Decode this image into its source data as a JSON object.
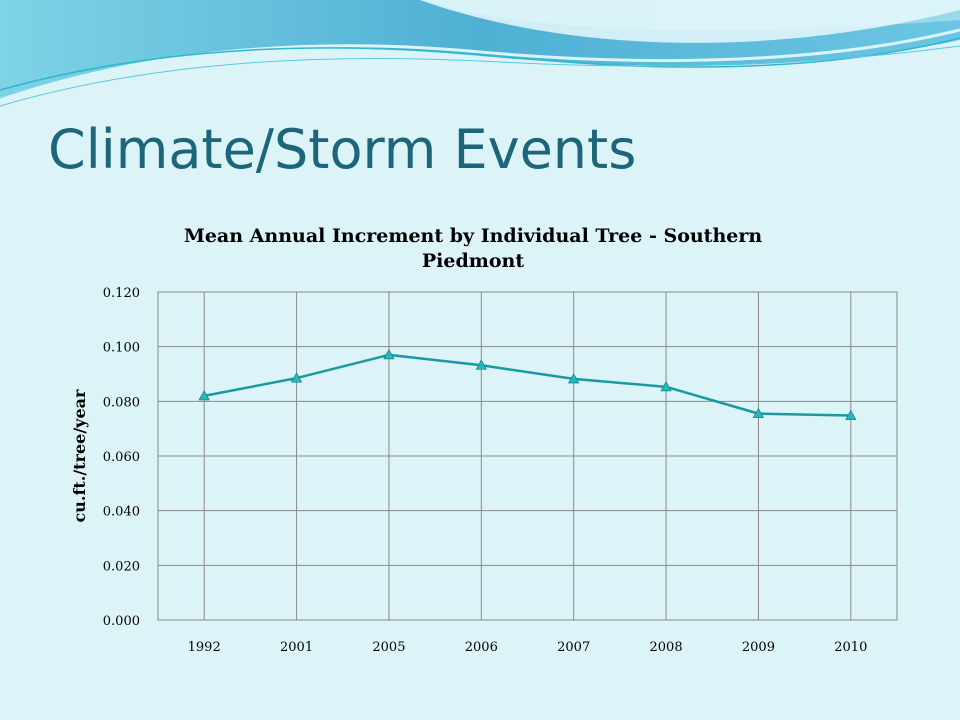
{
  "slide": {
    "title": "Climate/Storm Events"
  },
  "colors": {
    "background": "#dcf3f8",
    "title": "#1d6579",
    "series_line": "#1a9aa0",
    "series_marker": "#2ab6bd",
    "wave_dark": "#5db8d6",
    "wave_light": "#a9e3ef"
  },
  "chart_data": {
    "type": "line",
    "title_lines": [
      "Mean Annual Increment by Individual Tree - Southern",
      "Piedmont"
    ],
    "xlabel": "",
    "ylabel": "cu.ft./tree/year",
    "categories": [
      "1992",
      "2001",
      "2005",
      "2006",
      "2007",
      "2008",
      "2009",
      "2010"
    ],
    "series": [
      {
        "values": [
          0.082,
          0.0885,
          0.097,
          0.0932,
          0.0882,
          0.0853,
          0.0755,
          0.0748
        ],
        "marker": "triangle"
      }
    ],
    "ylim": [
      0,
      0.12
    ],
    "yticks": [
      0.0,
      0.02,
      0.04,
      0.06,
      0.08,
      0.1,
      0.12
    ],
    "ytick_labels": [
      "0.000",
      "0.020",
      "0.040",
      "0.060",
      "0.080",
      "0.100",
      "0.120"
    ],
    "grid": true,
    "legend": "none"
  }
}
